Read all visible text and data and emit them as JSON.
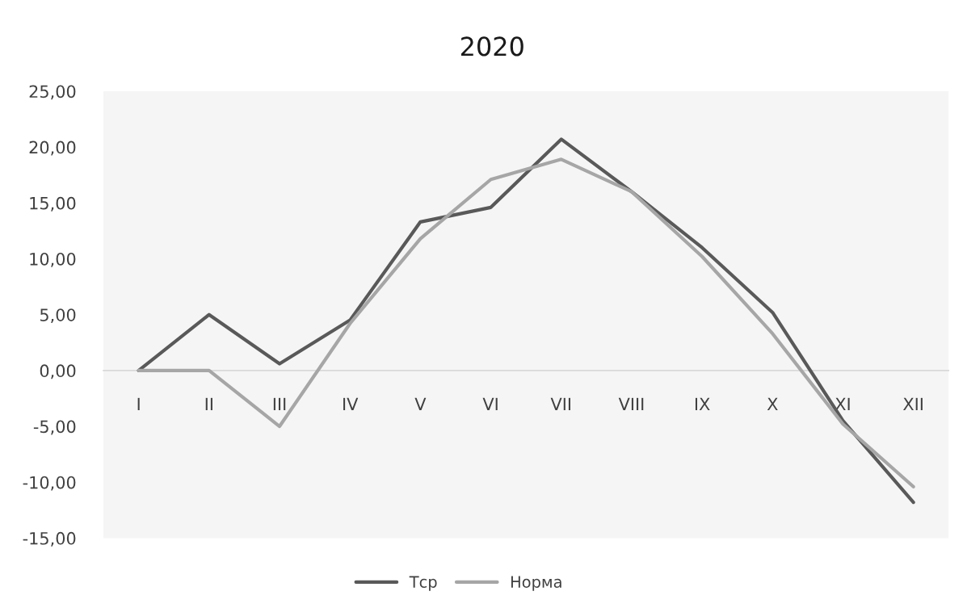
{
  "chart_data": {
    "type": "line",
    "title": "2020",
    "categories": [
      "I",
      "II",
      "III",
      "IV",
      "V",
      "VI",
      "VII",
      "VIII",
      "IX",
      "X",
      "XI",
      "XII"
    ],
    "series": [
      {
        "name": "Тср",
        "color": "#595959",
        "values": [
          0.0,
          5.0,
          0.6,
          4.5,
          13.3,
          14.6,
          20.7,
          16.0,
          11.0,
          5.2,
          -4.5,
          -11.8
        ]
      },
      {
        "name": "Норма",
        "color": "#a6a6a6",
        "values": [
          0.0,
          0.0,
          -5.0,
          4.2,
          11.8,
          17.1,
          18.9,
          16.0,
          10.2,
          3.3,
          -4.8,
          -10.4
        ]
      }
    ],
    "ylim": [
      -15,
      25
    ],
    "yticks": [
      {
        "value": -15,
        "label": "-15,00"
      },
      {
        "value": -10,
        "label": "-10,00"
      },
      {
        "value": -5,
        "label": "-5,00"
      },
      {
        "value": 0,
        "label": "0,00"
      },
      {
        "value": 5,
        "label": "5,00"
      },
      {
        "value": 10,
        "label": "10,00"
      },
      {
        "value": 15,
        "label": "15,00"
      },
      {
        "value": 20,
        "label": "20,00"
      },
      {
        "value": 25,
        "label": "25,00"
      }
    ],
    "legend": "bottom"
  }
}
